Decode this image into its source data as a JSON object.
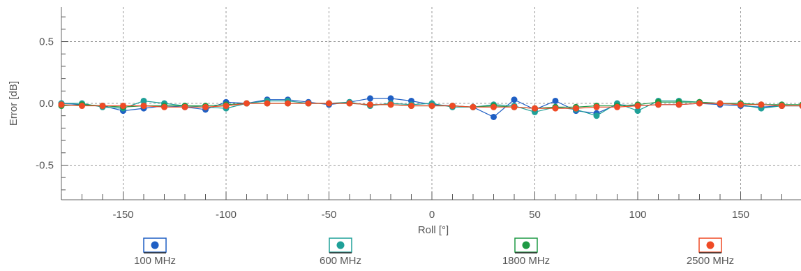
{
  "chart_data": {
    "type": "line",
    "xlabel": "Roll [°]",
    "ylabel": "Error [dB]",
    "xlim": [
      -180,
      180
    ],
    "ylim": [
      -0.78,
      0.78
    ],
    "x_major_ticks": [
      -150,
      -100,
      -50,
      0,
      50,
      100,
      150
    ],
    "x_minor_step": 10,
    "y_major_ticks": [
      0.5,
      0.0,
      -0.5
    ],
    "y_tick_labels": [
      "0.5",
      "0.0",
      "-0.5"
    ],
    "grid": true,
    "legend_position": "bottom",
    "x": [
      -180,
      -170,
      -160,
      -150,
      -140,
      -130,
      -120,
      -110,
      -100,
      -90,
      -80,
      -70,
      -60,
      -50,
      -40,
      -30,
      -20,
      -10,
      0,
      10,
      20,
      30,
      40,
      50,
      60,
      70,
      80,
      90,
      100,
      110,
      120,
      130,
      140,
      150,
      160,
      170,
      180
    ],
    "series": [
      {
        "name": "100 MHz",
        "color": "#1f5fc4",
        "values": [
          0.0,
          -0.01,
          -0.02,
          -0.06,
          -0.04,
          -0.02,
          -0.03,
          -0.05,
          0.01,
          0.0,
          0.03,
          0.03,
          0.01,
          -0.01,
          0.01,
          0.04,
          0.04,
          0.02,
          -0.01,
          -0.02,
          -0.03,
          -0.11,
          0.03,
          -0.05,
          0.02,
          -0.06,
          -0.08,
          -0.01,
          -0.02,
          -0.01,
          -0.01,
          0.0,
          -0.01,
          -0.02,
          -0.03,
          -0.02,
          -0.02
        ]
      },
      {
        "name": "600 MHz",
        "color": "#1fa098",
        "values": [
          0.0,
          0.0,
          -0.03,
          -0.04,
          0.02,
          0.0,
          -0.02,
          -0.03,
          -0.04,
          0.0,
          0.02,
          0.02,
          0.0,
          0.0,
          0.01,
          -0.02,
          0.0,
          -0.01,
          0.0,
          -0.03,
          -0.03,
          -0.01,
          -0.02,
          -0.07,
          -0.03,
          -0.05,
          -0.1,
          0.0,
          -0.06,
          0.02,
          0.02,
          0.01,
          0.0,
          -0.01,
          -0.04,
          -0.02,
          -0.02
        ]
      },
      {
        "name": "1800 MHz",
        "color": "#1e9a45",
        "values": [
          -0.02,
          -0.01,
          -0.02,
          -0.03,
          -0.02,
          -0.02,
          -0.02,
          -0.02,
          -0.01,
          0.0,
          0.0,
          0.0,
          0.0,
          0.0,
          0.0,
          -0.01,
          -0.01,
          -0.02,
          -0.02,
          -0.02,
          -0.03,
          -0.02,
          -0.03,
          -0.04,
          -0.03,
          -0.03,
          -0.02,
          -0.02,
          -0.01,
          0.01,
          0.01,
          0.01,
          0.0,
          0.0,
          -0.01,
          -0.01,
          -0.01
        ]
      },
      {
        "name": "2500 MHz",
        "color": "#ef4a25",
        "values": [
          -0.01,
          -0.02,
          -0.02,
          -0.02,
          -0.02,
          -0.03,
          -0.03,
          -0.03,
          -0.02,
          0.0,
          0.0,
          0.0,
          0.0,
          0.0,
          0.0,
          -0.01,
          -0.01,
          -0.02,
          -0.02,
          -0.02,
          -0.03,
          -0.03,
          -0.03,
          -0.04,
          -0.04,
          -0.04,
          -0.03,
          -0.03,
          -0.02,
          -0.01,
          -0.01,
          0.0,
          0.0,
          -0.01,
          -0.01,
          -0.02,
          -0.02
        ]
      }
    ]
  }
}
